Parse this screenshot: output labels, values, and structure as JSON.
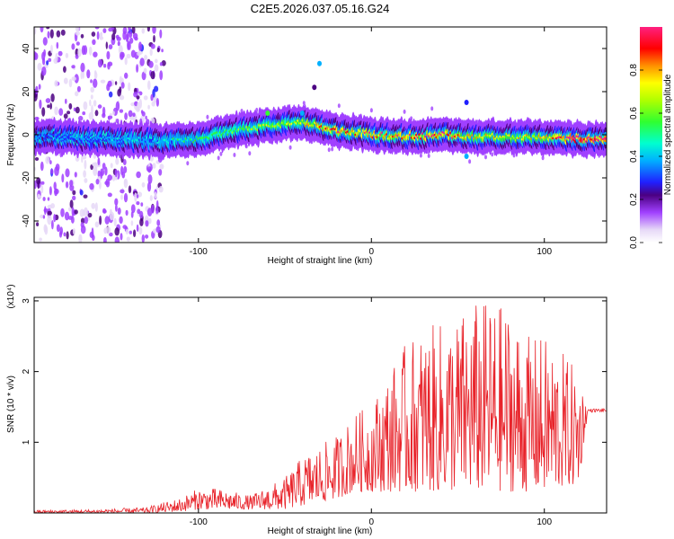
{
  "title": "C2E5.2026.037.05.16.G24",
  "chart_data": [
    {
      "type": "heatmap",
      "xlabel": "Height of straight line (km)",
      "ylabel": "Frequency (Hz)",
      "xlim": [
        -195,
        136
      ],
      "ylim": [
        -50,
        50
      ],
      "xticks": [
        -100,
        0,
        100
      ],
      "yticks": [
        -40,
        -20,
        0,
        20,
        40
      ],
      "colorbar": {
        "label": "Normalized spectral amplitude",
        "range": [
          0,
          1
        ],
        "ticks": [
          0.0,
          0.2,
          0.4,
          0.6,
          0.8
        ]
      },
      "ridge": {
        "description_points_x": [
          -190,
          -150,
          -120,
          -100,
          -80,
          -60,
          -40,
          -20,
          0,
          20,
          40,
          60,
          80,
          100,
          120,
          136
        ],
        "center_freq_hz": [
          -1,
          -2,
          -3,
          -2,
          2,
          4,
          6,
          2,
          0,
          -1,
          0,
          -1,
          -1,
          -1,
          -2,
          -2
        ],
        "peak_amplitude": [
          0.3,
          0.35,
          0.4,
          0.5,
          0.55,
          0.6,
          0.65,
          0.85,
          0.8,
          0.8,
          0.85,
          0.7,
          0.7,
          0.7,
          1.0,
          1.0
        ]
      },
      "noise_region_x": [
        -195,
        -120
      ]
    },
    {
      "type": "line",
      "xlabel": "Height of straight line (km)",
      "ylabel": "SNR (10 * v/v)",
      "scale_label": "(x10⁴)",
      "xlim": [
        -195,
        136
      ],
      "ylim": [
        0,
        3.05
      ],
      "xticks": [
        -100,
        0,
        100
      ],
      "yticks": [
        1,
        2,
        3
      ],
      "series": [
        {
          "name": "SNR",
          "color": "#e8232a",
          "envelope_x": [
            -195,
            -160,
            -130,
            -110,
            -100,
            -90,
            -70,
            -50,
            -40,
            -30,
            -20,
            -10,
            0,
            10,
            20,
            30,
            40,
            50,
            60,
            70,
            80,
            90,
            100,
            110,
            120,
            125,
            136
          ],
          "envelope_max": [
            0.04,
            0.05,
            0.08,
            0.22,
            0.35,
            0.35,
            0.25,
            0.5,
            0.8,
            0.95,
            1.1,
            1.4,
            1.55,
            2.0,
            2.4,
            2.6,
            2.7,
            2.8,
            3.0,
            3.0,
            2.9,
            2.5,
            2.5,
            2.3,
            2.0,
            1.52,
            1.52
          ],
          "baseline": [
            0.0,
            0.0,
            0.0,
            0.02,
            0.05,
            0.05,
            0.05,
            0.05,
            0.1,
            0.15,
            0.2,
            0.3,
            0.3,
            0.3,
            0.3,
            0.3,
            0.3,
            0.3,
            0.3,
            0.3,
            0.3,
            0.3,
            0.3,
            0.35,
            0.4,
            1.45,
            1.45
          ]
        }
      ]
    }
  ]
}
